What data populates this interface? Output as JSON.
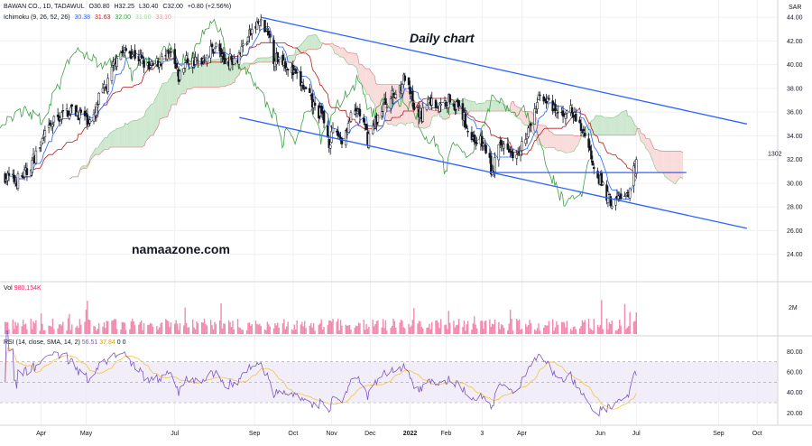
{
  "header": {
    "symbol_line": "BAWAN CO., 1D, TADAWUL",
    "ohlc": {
      "o": "O30.80",
      "h": "H32.25",
      "l": "L30.40",
      "c": "C32.00",
      "chg": "+0.80 (+2.56%)"
    },
    "ichimoku_label": "Ichimoku (9, 26, 52, 26)",
    "ichimoku_values": [
      {
        "v": "30.38",
        "color": "#2962ff"
      },
      {
        "v": "31.63",
        "color": "#b71c1c"
      },
      {
        "v": "32.00",
        "color": "#43a047"
      },
      {
        "v": "31.00",
        "color": "#a5d6a7"
      },
      {
        "v": "33.10",
        "color": "#ef9a9a"
      }
    ],
    "currency": "SAR"
  },
  "volume": {
    "label": "Vol",
    "value": "980.154K",
    "axis_label": "2M"
  },
  "rsi": {
    "label": "RSI (14, close, SMA, 14, 2)",
    "values": [
      {
        "v": "56.51",
        "color": "#7e57c2"
      },
      {
        "v": "37.84",
        "color": "#f6c343"
      },
      {
        "v": "0",
        "color": "#131722"
      },
      {
        "v": "0",
        "color": "#131722"
      }
    ],
    "axis_ticks": [
      "80.00",
      "60.00",
      "40.00",
      "20.00"
    ]
  },
  "annotations": {
    "title": "Daily chart",
    "watermark": "namaazone.com",
    "level": "1302"
  },
  "colors": {
    "candle": "#131722",
    "tenkan": "#2962ff",
    "kijun": "#b71c1c",
    "chikou": "#43a047",
    "cloud_bull": "#c8e6c9",
    "cloud_bear": "#f8d7d7",
    "channel": "#2962ff",
    "rsi": "#7e57c2",
    "rsi_ma": "#f6c343",
    "rsi_band": "#ede7f6",
    "volume": "#f06292",
    "grid": "#eef0f3"
  },
  "chart_data": {
    "type": "candlestick",
    "title": "Daily chart",
    "ylim": [
      22,
      45
    ],
    "y_ticks": [
      "44.00",
      "42.00",
      "40.00",
      "38.00",
      "36.00",
      "34.00",
      "32.00",
      "30.00",
      "28.00",
      "26.00",
      "24.00"
    ],
    "x_ticks": [
      "Apr",
      "May",
      "Jul",
      "Sep",
      "Oct",
      "Nov",
      "Dec",
      "2022",
      "Feb",
      "3",
      "Apr",
      "Jun",
      "Jul",
      "Sep",
      "Oct"
    ],
    "close_path": [
      [
        "2021-03-08",
        30.6
      ],
      [
        "2021-03-16",
        30.2
      ],
      [
        "2021-03-25",
        30.9
      ],
      [
        "2021-04-07",
        33.8
      ],
      [
        "2021-04-16",
        35.4
      ],
      [
        "2021-04-28",
        36.2
      ],
      [
        "2021-05-08",
        35.7
      ],
      [
        "2021-05-15",
        35.0
      ],
      [
        "2021-05-20",
        37.1
      ],
      [
        "2021-05-27",
        38.4
      ],
      [
        "2021-06-03",
        40.9
      ],
      [
        "2021-06-12",
        41.2
      ],
      [
        "2021-06-21",
        40.5
      ],
      [
        "2021-06-28",
        39.6
      ],
      [
        "2021-07-06",
        40.3
      ],
      [
        "2021-07-15",
        40.8
      ],
      [
        "2021-07-21",
        38.9
      ],
      [
        "2021-07-27",
        40.4
      ],
      [
        "2021-08-06",
        40.2
      ],
      [
        "2021-08-13",
        41.0
      ],
      [
        "2021-08-19",
        41.6
      ],
      [
        "2021-08-26",
        40.3
      ],
      [
        "2021-09-05",
        40.7
      ],
      [
        "2021-09-10",
        41.8
      ],
      [
        "2021-09-17",
        43.0
      ],
      [
        "2021-09-22",
        43.6
      ],
      [
        "2021-09-30",
        42.2
      ],
      [
        "2021-10-03",
        40.6
      ],
      [
        "2021-10-10",
        40.5
      ],
      [
        "2021-10-18",
        39.3
      ],
      [
        "2021-10-26",
        38.1
      ],
      [
        "2021-11-03",
        36.5
      ],
      [
        "2021-11-10",
        35.6
      ],
      [
        "2021-11-15",
        33.5
      ],
      [
        "2021-11-20",
        34.5
      ],
      [
        "2021-11-25",
        33.6
      ],
      [
        "2021-12-01",
        35.3
      ],
      [
        "2021-12-08",
        36.2
      ],
      [
        "2021-12-15",
        33.8
      ],
      [
        "2021-12-21",
        35.2
      ],
      [
        "2021-12-28",
        36.7
      ],
      [
        "2022-01-06",
        37.6
      ],
      [
        "2022-01-13",
        38.9
      ],
      [
        "2022-01-20",
        36.3
      ],
      [
        "2022-01-25",
        35.8
      ],
      [
        "2022-02-01",
        37.0
      ],
      [
        "2022-02-10",
        36.4
      ],
      [
        "2022-02-17",
        37.2
      ],
      [
        "2022-02-26",
        36.0
      ],
      [
        "2022-03-06",
        33.8
      ],
      [
        "2022-03-12",
        33.6
      ],
      [
        "2022-03-18",
        32.7
      ],
      [
        "2022-03-22",
        30.7
      ],
      [
        "2022-03-25",
        32.6
      ],
      [
        "2022-04-02",
        33.5
      ],
      [
        "2022-04-08",
        32.5
      ],
      [
        "2022-04-17",
        33.8
      ],
      [
        "2022-04-24",
        35.9
      ],
      [
        "2022-04-29",
        37.8
      ],
      [
        "2022-05-07",
        36.2
      ],
      [
        "2022-05-15",
        35.7
      ],
      [
        "2022-05-20",
        36.5
      ],
      [
        "2022-05-27",
        35.1
      ],
      [
        "2022-06-02",
        34.2
      ],
      [
        "2022-06-08",
        31.9
      ],
      [
        "2022-06-14",
        30.2
      ],
      [
        "2022-06-19",
        29.0
      ],
      [
        "2022-06-24",
        28.2
      ],
      [
        "2022-06-30",
        29.0
      ],
      [
        "2022-07-06",
        28.7
      ],
      [
        "2022-07-09",
        30.5
      ],
      [
        "2022-07-12",
        32.0
      ]
    ],
    "channel": {
      "upper": [
        [
          "2021-09-23",
          44.0
        ],
        [
          "2022-10-06",
          35.0
        ]
      ],
      "lower": [
        [
          "2021-09-23",
          35.4
        ],
        [
          "2022-10-06",
          26.2
        ]
      ]
    },
    "support_line": {
      "value": 30.9,
      "from": "2022-03-20",
      "to": "2022-08-20"
    },
    "last_close": 32.0
  }
}
